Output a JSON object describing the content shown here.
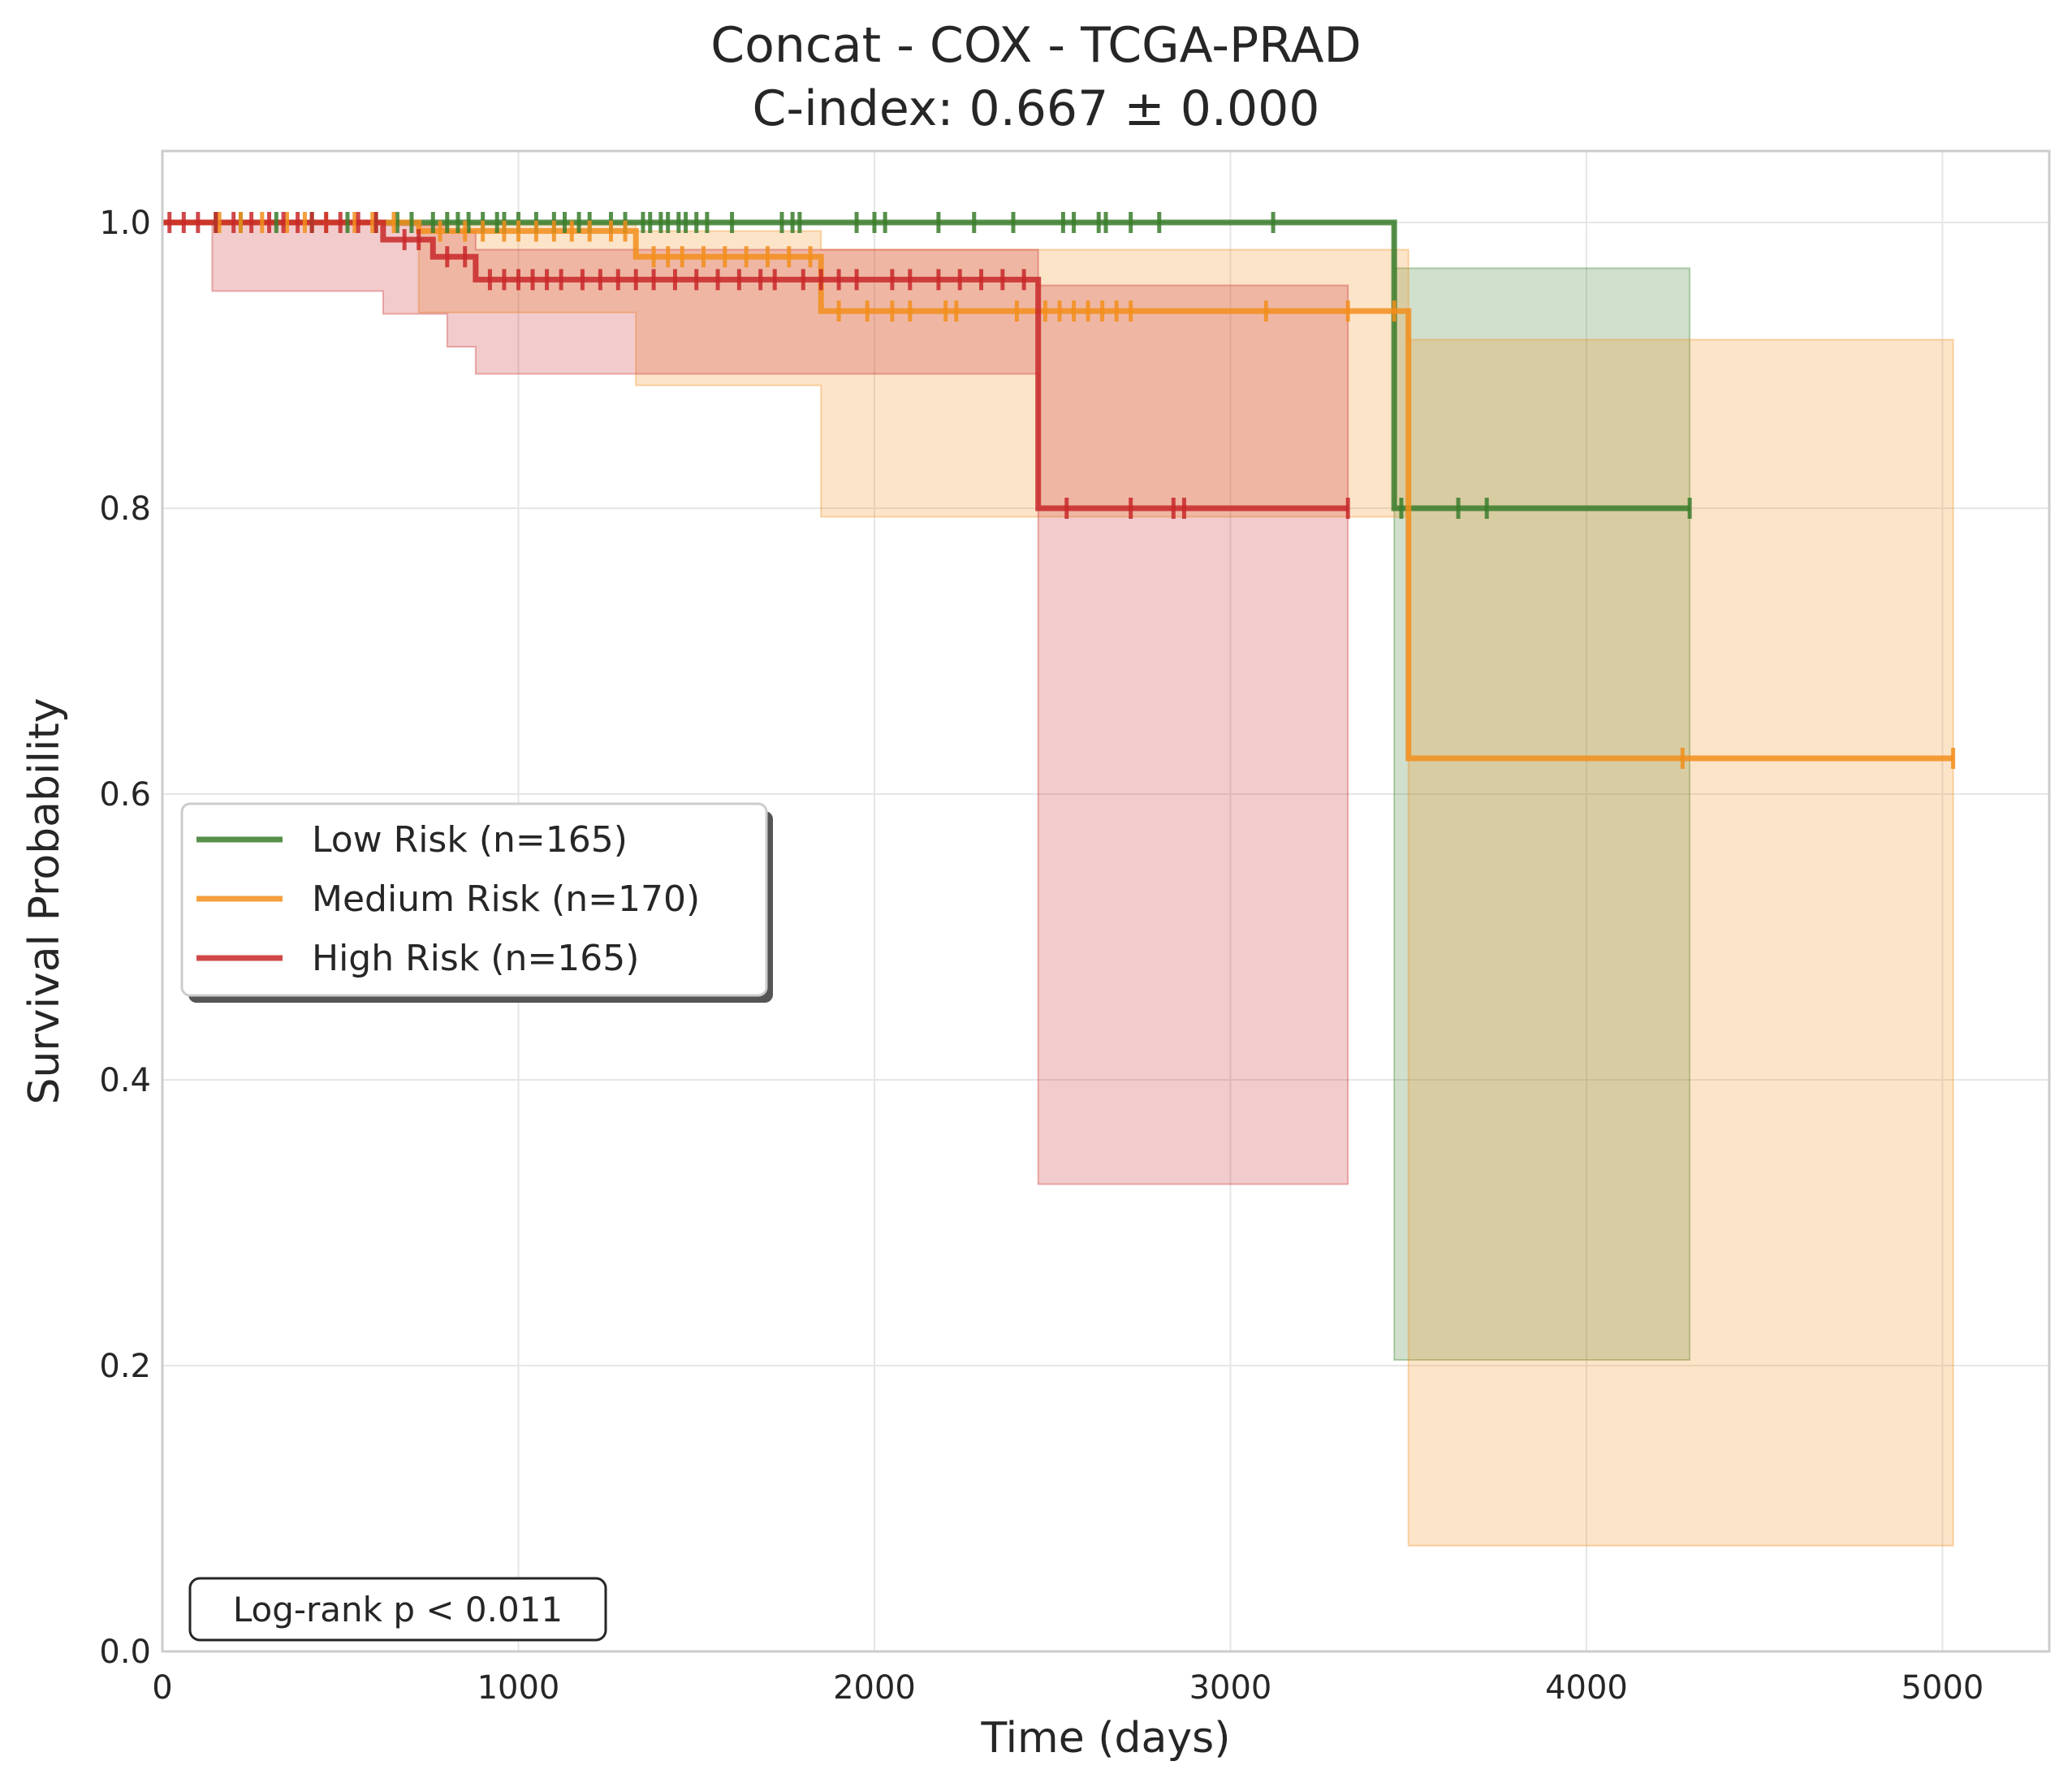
{
  "chart_data": {
    "type": "line",
    "title": "Concat - COX - TCGA-PRAD",
    "subtitle": "C-index: 0.667 ± 0.000",
    "xlabel": "Time (days)",
    "ylabel": "Survival Probability",
    "xlim": [
      0,
      5300
    ],
    "ylim": [
      0,
      1.05
    ],
    "xticks": [
      0,
      1000,
      2000,
      3000,
      4000,
      5000
    ],
    "xtick_labels": [
      "0",
      "1000",
      "2000",
      "3000",
      "4000",
      "5000"
    ],
    "yticks": [
      0.0,
      0.2,
      0.4,
      0.6,
      0.8,
      1.0
    ],
    "ytick_labels": [
      "0.0",
      "0.2",
      "0.4",
      "0.6",
      "0.8",
      "1.0"
    ],
    "grid": true,
    "legend_position": "center-left",
    "annotation": "Log-rank p < 0.011",
    "series": [
      {
        "name": "Low Risk (n=165)",
        "color": "#3a7d2c",
        "steps": [
          [
            0,
            1.0
          ],
          [
            3460,
            1.0
          ],
          [
            3460,
            0.8
          ],
          [
            4290,
            0.8
          ]
        ],
        "ci": [
          [
            0,
            1.0,
            1.0
          ],
          [
            3460,
            0.204,
            0.968
          ],
          [
            4290,
            0.204,
            0.968
          ]
        ],
        "censors": [
          [
            150,
            1.0
          ],
          [
            220,
            1.0
          ],
          [
            320,
            1.0
          ],
          [
            420,
            1.0
          ],
          [
            520,
            1.0
          ],
          [
            600,
            1.0
          ],
          [
            660,
            1.0
          ],
          [
            700,
            1.0
          ],
          [
            760,
            1.0
          ],
          [
            800,
            1.0
          ],
          [
            830,
            1.0
          ],
          [
            860,
            1.0
          ],
          [
            900,
            1.0
          ],
          [
            940,
            1.0
          ],
          [
            960,
            1.0
          ],
          [
            1000,
            1.0
          ],
          [
            1050,
            1.0
          ],
          [
            1100,
            1.0
          ],
          [
            1130,
            1.0
          ],
          [
            1170,
            1.0
          ],
          [
            1200,
            1.0
          ],
          [
            1260,
            1.0
          ],
          [
            1300,
            1.0
          ],
          [
            1350,
            1.0
          ],
          [
            1370,
            1.0
          ],
          [
            1400,
            1.0
          ],
          [
            1420,
            1.0
          ],
          [
            1450,
            1.0
          ],
          [
            1470,
            1.0
          ],
          [
            1500,
            1.0
          ],
          [
            1530,
            1.0
          ],
          [
            1600,
            1.0
          ],
          [
            1740,
            1.0
          ],
          [
            1770,
            1.0
          ],
          [
            1790,
            1.0
          ],
          [
            1950,
            1.0
          ],
          [
            2000,
            1.0
          ],
          [
            2030,
            1.0
          ],
          [
            2180,
            1.0
          ],
          [
            2280,
            1.0
          ],
          [
            2390,
            1.0
          ],
          [
            2530,
            1.0
          ],
          [
            2560,
            1.0
          ],
          [
            2630,
            1.0
          ],
          [
            2650,
            1.0
          ],
          [
            2720,
            1.0
          ],
          [
            2800,
            1.0
          ],
          [
            3120,
            1.0
          ],
          [
            3480,
            0.8
          ],
          [
            3640,
            0.8
          ],
          [
            3720,
            0.8
          ],
          [
            4290,
            0.8
          ]
        ]
      },
      {
        "name": "Medium Risk (n=170)",
        "color": "#f28e1c",
        "steps": [
          [
            0,
            1.0
          ],
          [
            720,
            1.0
          ],
          [
            720,
            0.994
          ],
          [
            1330,
            0.994
          ],
          [
            1330,
            0.976
          ],
          [
            1850,
            0.976
          ],
          [
            1850,
            0.938
          ],
          [
            3500,
            0.938
          ],
          [
            3500,
            0.625
          ],
          [
            5030,
            0.625
          ]
        ],
        "ci": [
          [
            0,
            1.0,
            1.0
          ],
          [
            720,
            0.937,
            0.999
          ],
          [
            1330,
            0.886,
            0.994
          ],
          [
            1850,
            0.794,
            0.981
          ],
          [
            3500,
            0.074,
            0.918
          ],
          [
            5030,
            0.074,
            0.918
          ]
        ],
        "censors": [
          [
            160,
            1.0
          ],
          [
            220,
            1.0
          ],
          [
            280,
            1.0
          ],
          [
            350,
            1.0
          ],
          [
            400,
            1.0
          ],
          [
            460,
            1.0
          ],
          [
            540,
            1.0
          ],
          [
            590,
            1.0
          ],
          [
            650,
            1.0
          ],
          [
            780,
            0.994
          ],
          [
            850,
            0.994
          ],
          [
            900,
            0.994
          ],
          [
            960,
            0.994
          ],
          [
            1000,
            0.994
          ],
          [
            1050,
            0.994
          ],
          [
            1100,
            0.994
          ],
          [
            1150,
            0.994
          ],
          [
            1200,
            0.994
          ],
          [
            1260,
            0.994
          ],
          [
            1300,
            0.994
          ],
          [
            1380,
            0.976
          ],
          [
            1420,
            0.976
          ],
          [
            1460,
            0.976
          ],
          [
            1520,
            0.976
          ],
          [
            1580,
            0.976
          ],
          [
            1640,
            0.976
          ],
          [
            1700,
            0.976
          ],
          [
            1760,
            0.976
          ],
          [
            1820,
            0.976
          ],
          [
            1900,
            0.938
          ],
          [
            1980,
            0.938
          ],
          [
            2050,
            0.938
          ],
          [
            2100,
            0.938
          ],
          [
            2200,
            0.938
          ],
          [
            2230,
            0.938
          ],
          [
            2400,
            0.938
          ],
          [
            2480,
            0.938
          ],
          [
            2520,
            0.938
          ],
          [
            2560,
            0.938
          ],
          [
            2600,
            0.938
          ],
          [
            2640,
            0.938
          ],
          [
            2680,
            0.938
          ],
          [
            2720,
            0.938
          ],
          [
            3100,
            0.938
          ],
          [
            3330,
            0.938
          ],
          [
            3460,
            0.938
          ],
          [
            4270,
            0.625
          ],
          [
            5030,
            0.625
          ]
        ]
      },
      {
        "name": "High Risk (n=165)",
        "color": "#c8282a",
        "steps": [
          [
            0,
            1.0
          ],
          [
            620,
            1.0
          ],
          [
            620,
            0.988
          ],
          [
            760,
            0.988
          ],
          [
            760,
            0.976
          ],
          [
            880,
            0.976
          ],
          [
            880,
            0.96
          ],
          [
            2460,
            0.96
          ],
          [
            2460,
            0.8
          ],
          [
            3330,
            0.8
          ]
        ],
        "ci": [
          [
            0,
            1.0,
            1.0
          ],
          [
            140,
            0.952,
            1.0
          ],
          [
            620,
            0.936,
            0.998
          ],
          [
            800,
            0.913,
            0.994
          ],
          [
            880,
            0.894,
            0.981
          ],
          [
            2460,
            0.327,
            0.956
          ],
          [
            3330,
            0.327,
            0.956
          ]
        ],
        "censors": [
          [
            20,
            1.0
          ],
          [
            60,
            1.0
          ],
          [
            100,
            1.0
          ],
          [
            150,
            1.0
          ],
          [
            200,
            1.0
          ],
          [
            250,
            1.0
          ],
          [
            300,
            1.0
          ],
          [
            340,
            1.0
          ],
          [
            380,
            1.0
          ],
          [
            420,
            1.0
          ],
          [
            460,
            1.0
          ],
          [
            500,
            1.0
          ],
          [
            550,
            1.0
          ],
          [
            600,
            1.0
          ],
          [
            680,
            0.988
          ],
          [
            720,
            0.988
          ],
          [
            800,
            0.976
          ],
          [
            850,
            0.976
          ],
          [
            920,
            0.96
          ],
          [
            960,
            0.96
          ],
          [
            1000,
            0.96
          ],
          [
            1040,
            0.96
          ],
          [
            1080,
            0.96
          ],
          [
            1120,
            0.96
          ],
          [
            1180,
            0.96
          ],
          [
            1230,
            0.96
          ],
          [
            1280,
            0.96
          ],
          [
            1330,
            0.96
          ],
          [
            1380,
            0.96
          ],
          [
            1440,
            0.96
          ],
          [
            1500,
            0.96
          ],
          [
            1560,
            0.96
          ],
          [
            1620,
            0.96
          ],
          [
            1680,
            0.96
          ],
          [
            1720,
            0.96
          ],
          [
            1800,
            0.96
          ],
          [
            1850,
            0.96
          ],
          [
            1900,
            0.96
          ],
          [
            1950,
            0.96
          ],
          [
            2050,
            0.96
          ],
          [
            2100,
            0.96
          ],
          [
            2180,
            0.96
          ],
          [
            2240,
            0.96
          ],
          [
            2300,
            0.96
          ],
          [
            2360,
            0.96
          ],
          [
            2420,
            0.96
          ],
          [
            2540,
            0.8
          ],
          [
            2720,
            0.8
          ],
          [
            2840,
            0.8
          ],
          [
            2870,
            0.8
          ],
          [
            3330,
            0.8
          ]
        ]
      }
    ]
  }
}
